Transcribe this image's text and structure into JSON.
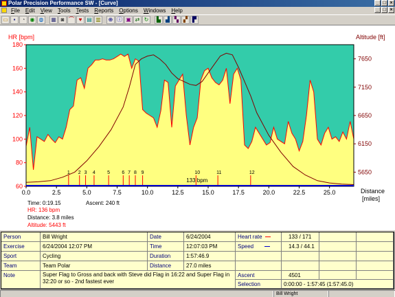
{
  "window": {
    "title": "Polar Precision Performance SW - [Curve]",
    "buttons": {
      "minimize": "_",
      "maximize": "□",
      "close": "×"
    }
  },
  "menu": [
    "File",
    "Edit",
    "View",
    "Tools",
    "Tests",
    "Reports",
    "Options",
    "Windows",
    "Help"
  ],
  "toolbar": {
    "icons": [
      "folder-open-icon",
      "save-icon",
      "exercise-icon",
      "fitness-test-icon",
      "globe-icon",
      "calendar-icon",
      "camera-icon",
      "curve-icon",
      "hr-icon",
      "weekly-icon",
      "chart-icon",
      "zoom-icon",
      "info-icon",
      "selection-icon",
      "compare-icon",
      "sync-icon",
      "report1-icon",
      "report2-icon",
      "report3-icon",
      "report4-icon",
      "report5-icon"
    ]
  },
  "chart_data": {
    "type": "line",
    "y_left_label": "HR [bpm]",
    "y_right_label": "Altitude [ft]",
    "x_label_1": "Distance",
    "x_label_2": "[miles]",
    "x_range": [
      0,
      27
    ],
    "x_ticks": [
      "0.0",
      "2.5",
      "5.0",
      "7.5",
      "10.0",
      "12.5",
      "15.0",
      "17.5",
      "20.0",
      "22.5",
      "25.0"
    ],
    "y_left_range": [
      60,
      180
    ],
    "y_left_ticks": [
      "60",
      "80",
      "100",
      "120",
      "140",
      "160",
      "180"
    ],
    "y_right_range": [
      5400,
      7900
    ],
    "y_right_ticks": [
      "5650",
      "6150",
      "6650",
      "7150",
      "7650"
    ],
    "y_right_tick_values": [
      5650,
      6150,
      6650,
      7150,
      7650
    ],
    "threshold_label": "133 bpm",
    "threshold_value": 133,
    "lap_markers": [
      {
        "label": "1",
        "x": 3.5
      },
      {
        "label": "2",
        "x": 4.4
      },
      {
        "label": "3",
        "x": 4.9
      },
      {
        "label": "4",
        "x": 5.6
      },
      {
        "label": "5",
        "x": 6.8
      },
      {
        "label": "6",
        "x": 8.0
      },
      {
        "label": "7",
        "x": 8.5
      },
      {
        "label": "8",
        "x": 9.0
      },
      {
        "label": "9",
        "x": 9.6
      },
      {
        "label": "10",
        "x": 14.0
      },
      {
        "label": "11",
        "x": 15.8
      },
      {
        "label": "12",
        "x": 18.5
      }
    ],
    "series": [
      {
        "name": "Heart rate",
        "color": "#ff0000",
        "x": [
          0,
          0.3,
          0.6,
          0.9,
          1.2,
          1.5,
          1.8,
          2.1,
          2.4,
          2.7,
          3.0,
          3.3,
          3.6,
          3.9,
          4.2,
          4.5,
          4.8,
          5.1,
          5.4,
          5.7,
          6.0,
          6.3,
          6.6,
          6.9,
          7.2,
          7.5,
          7.8,
          8.1,
          8.4,
          8.7,
          9.0,
          9.3,
          9.6,
          9.9,
          10.2,
          10.5,
          10.8,
          11.1,
          11.4,
          11.7,
          12.0,
          12.3,
          12.6,
          12.9,
          13.2,
          13.5,
          13.8,
          14.1,
          14.4,
          14.7,
          15.0,
          15.3,
          15.6,
          15.9,
          16.2,
          16.5,
          16.8,
          17.1,
          17.4,
          17.7,
          18.0,
          18.3,
          18.6,
          18.9,
          19.2,
          19.5,
          19.8,
          20.1,
          20.4,
          20.7,
          21.0,
          21.3,
          21.6,
          21.9,
          22.2,
          22.5,
          22.8,
          23.1,
          23.4,
          23.7,
          24.0,
          24.3,
          24.6,
          24.9,
          25.2,
          25.5,
          25.8,
          26.1,
          26.4,
          26.7,
          27.0
        ],
        "y": [
          94,
          110,
          74,
          102,
          100,
          98,
          104,
          100,
          97,
          102,
          100,
          110,
          125,
          128,
          150,
          152,
          143,
          160,
          163,
          167,
          167,
          168,
          167,
          167,
          168,
          170,
          172,
          170,
          172,
          160,
          168,
          166,
          125,
          122,
          120,
          118,
          110,
          124,
          150,
          148,
          110,
          145,
          150,
          155,
          120,
          95,
          110,
          118,
          150,
          158,
          160,
          152,
          148,
          146,
          150,
          160,
          130,
          155,
          160,
          150,
          95,
          92,
          98,
          110,
          105,
          100,
          95,
          97,
          110,
          100,
          98,
          96,
          115,
          105,
          100,
          90,
          98,
          120,
          150,
          140,
          100,
          95,
          105,
          110,
          100,
          102,
          98,
          106,
          100,
          115,
          100
        ]
      },
      {
        "name": "Speed",
        "color": "#0000cc"
      },
      {
        "name": "Altitude",
        "color": "#800000",
        "x": [
          0,
          1,
          2,
          3,
          4,
          5,
          6,
          7,
          8,
          8.5,
          9,
          9.5,
          10,
          10.5,
          11,
          11.5,
          12,
          12.5,
          13,
          13.5,
          14,
          14.5,
          15,
          15.5,
          16,
          16.5,
          17,
          17.5,
          18,
          18.5,
          19,
          20,
          21,
          22,
          23,
          24,
          25,
          26,
          27
        ],
        "y": [
          5470,
          5480,
          5500,
          5560,
          5650,
          5850,
          6100,
          6400,
          6800,
          7150,
          7550,
          7650,
          7700,
          7720,
          7650,
          7550,
          7400,
          7300,
          7250,
          7200,
          7180,
          7250,
          7400,
          7550,
          7700,
          7750,
          7720,
          7500,
          7250,
          7000,
          6700,
          6300,
          6000,
          5750,
          5600,
          5500,
          5460,
          5440,
          5430
        ]
      }
    ]
  },
  "readout": {
    "time": "Time: 0:19.15",
    "ascent": "Ascent: 240 ft",
    "hr": "HR: 136 bpm",
    "distance": "Distance: 3.8 miles",
    "altitude": "Altitude: 5443 ft"
  },
  "info": {
    "person_label": "Person",
    "person": "Bill Wright",
    "exercise_label": "Exercise",
    "exercise": "6/24/2004 12:07 PM",
    "sport_label": "Sport",
    "sport": "Cycling",
    "team_label": "Team",
    "team": "Team Polar",
    "note_label": "Note",
    "note": "Super Flag to Gross and back with Steve did Flag in 16:22 and Super Flag in 32:20 or so - 2nd fastest ever",
    "date_label": "Date",
    "date": "6/24/2004",
    "time_label": "Time",
    "time": "12:07:03 PM",
    "duration_label": "Duration",
    "duration": "1:57:46.9",
    "distance_label": "Distance",
    "distance": "27.0 miles",
    "hr_label": "Heart rate",
    "hr": "133 / 171",
    "speed_label": "Speed",
    "speed": "14.3 / 44.1",
    "ascent_label": "Ascent",
    "ascent": "4501",
    "selection_label": "Selection",
    "selection": "0:00:00 - 1:57:45 (1:57:45.0)"
  },
  "status": {
    "user": "Bill Wright"
  },
  "colors": {
    "sky": "#33ccaa",
    "ground": "#ffff80",
    "hr": "#ff0000",
    "altitude": "#800000",
    "speed": "#0000cc"
  }
}
